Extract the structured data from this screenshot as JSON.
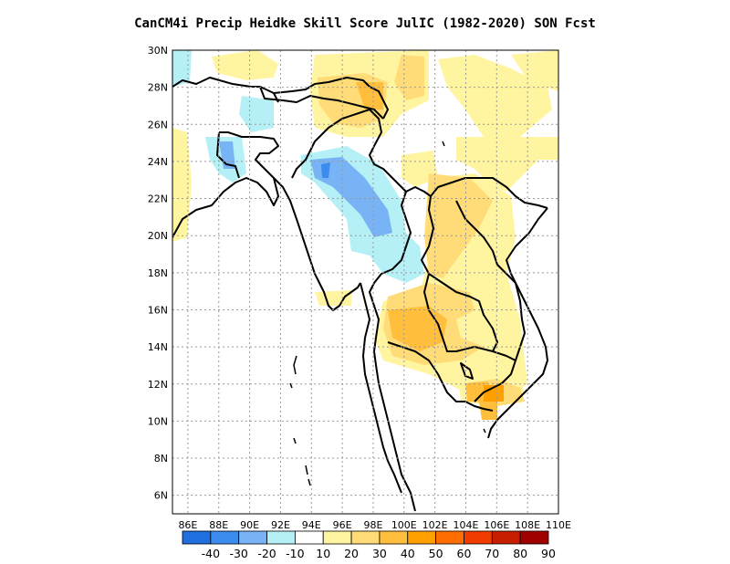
{
  "title": "CanCM4i Precip Heidke Skill Score JulIC (1982-2020) SON Fcst",
  "map": {
    "lat_labels": [
      "30N",
      "28N",
      "26N",
      "24N",
      "22N",
      "20N",
      "18N",
      "16N",
      "14N",
      "12N",
      "10N",
      "8N",
      "6N"
    ],
    "lon_labels": [
      "86E",
      "88E",
      "90E",
      "92E",
      "94E",
      "96E",
      "98E",
      "100E",
      "102E",
      "104E",
      "106E",
      "108E",
      "110E"
    ],
    "lat_range": [
      5,
      30
    ],
    "lon_range": [
      85,
      110
    ],
    "grid": "dotted"
  },
  "colorbar": {
    "labels": [
      "-40",
      "-30",
      "-20",
      "-10",
      "10",
      "20",
      "30",
      "40",
      "50",
      "60",
      "70",
      "80",
      "90"
    ],
    "colors": [
      "#1f6fe0",
      "#3c8cf0",
      "#78b4f5",
      "#b4f0f5",
      "#ffffff",
      "#fff5a0",
      "#ffdc78",
      "#ffbe3c",
      "#ffa000",
      "#ff6e00",
      "#f03c00",
      "#c81e00",
      "#a00000"
    ]
  }
}
